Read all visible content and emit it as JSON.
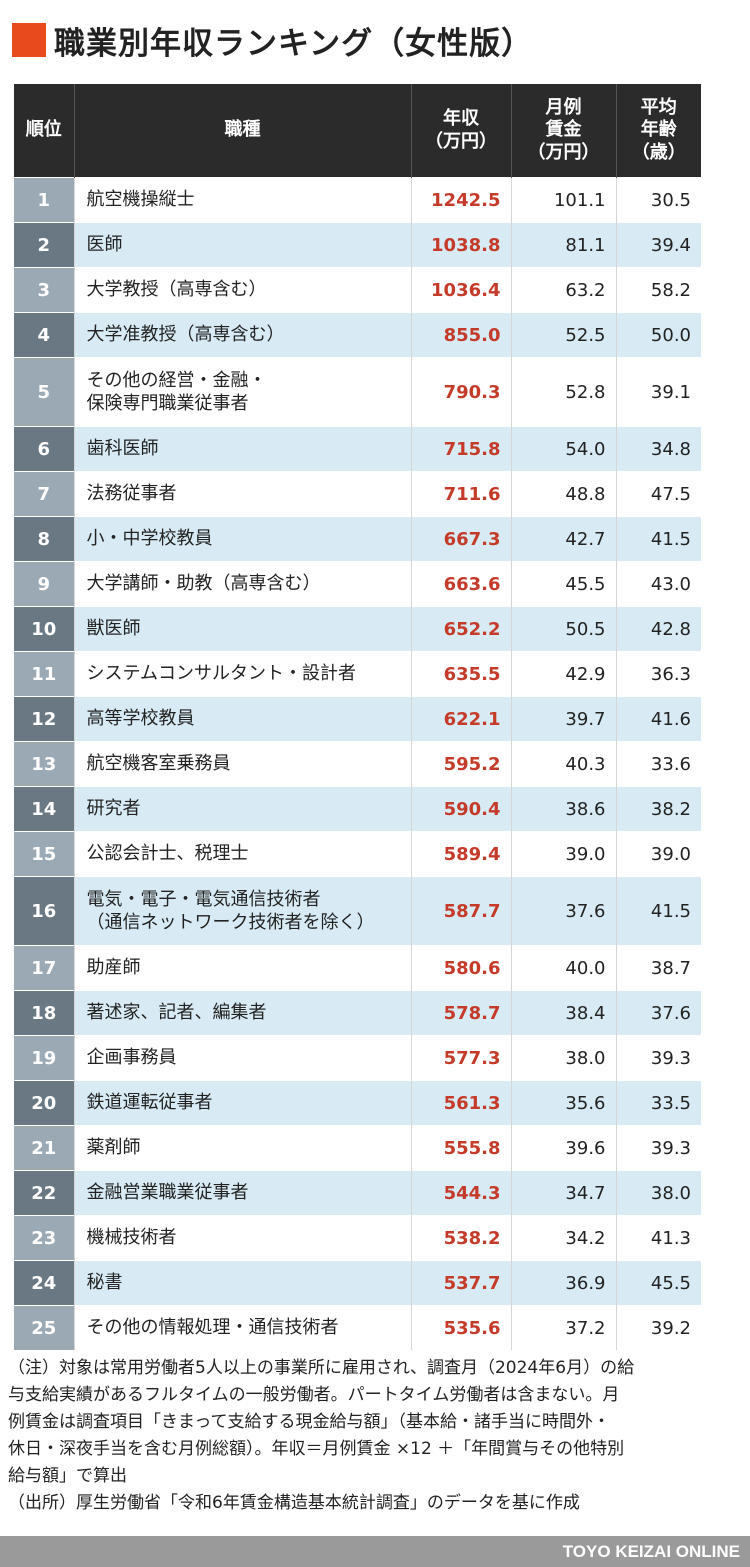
{
  "title": "職業別年収ランキング（女性版）",
  "header": {
    "rank": "順位",
    "job": "職種",
    "salary": [
      "年収",
      "（万円）"
    ],
    "monthly": [
      "月例",
      "賃金",
      "（万円）"
    ],
    "age": [
      "平均",
      "年齢",
      "（歳）"
    ]
  },
  "rows": [
    {
      "rank": "1",
      "job": [
        "航空機操縦士"
      ],
      "salary": "1242.5",
      "monthly": "101.1",
      "age": "30.5"
    },
    {
      "rank": "2",
      "job": [
        "医師"
      ],
      "salary": "1038.8",
      "monthly": "81.1",
      "age": "39.4"
    },
    {
      "rank": "3",
      "job": [
        "大学教授（高専含む）"
      ],
      "salary": "1036.4",
      "monthly": "63.2",
      "age": "58.2"
    },
    {
      "rank": "4",
      "job": [
        "大学准教授（高専含む）"
      ],
      "salary": "855.0",
      "monthly": "52.5",
      "age": "50.0"
    },
    {
      "rank": "5",
      "job": [
        "その他の経営・金融・",
        "保険専門職業従事者"
      ],
      "salary": "790.3",
      "monthly": "52.8",
      "age": "39.1"
    },
    {
      "rank": "6",
      "job": [
        "歯科医師"
      ],
      "salary": "715.8",
      "monthly": "54.0",
      "age": "34.8"
    },
    {
      "rank": "7",
      "job": [
        "法務従事者"
      ],
      "salary": "711.6",
      "monthly": "48.8",
      "age": "47.5"
    },
    {
      "rank": "8",
      "job": [
        "小・中学校教員"
      ],
      "salary": "667.3",
      "monthly": "42.7",
      "age": "41.5"
    },
    {
      "rank": "9",
      "job": [
        "大学講師・助教（高専含む）"
      ],
      "salary": "663.6",
      "monthly": "45.5",
      "age": "43.0"
    },
    {
      "rank": "10",
      "job": [
        "獣医師"
      ],
      "salary": "652.2",
      "monthly": "50.5",
      "age": "42.8"
    },
    {
      "rank": "11",
      "job": [
        "システムコンサルタント・設計者"
      ],
      "salary": "635.5",
      "monthly": "42.9",
      "age": "36.3"
    },
    {
      "rank": "12",
      "job": [
        "高等学校教員"
      ],
      "salary": "622.1",
      "monthly": "39.7",
      "age": "41.6"
    },
    {
      "rank": "13",
      "job": [
        "航空機客室乗務員"
      ],
      "salary": "595.2",
      "monthly": "40.3",
      "age": "33.6"
    },
    {
      "rank": "14",
      "job": [
        "研究者"
      ],
      "salary": "590.4",
      "monthly": "38.6",
      "age": "38.2"
    },
    {
      "rank": "15",
      "job": [
        "公認会計士、税理士"
      ],
      "salary": "589.4",
      "monthly": "39.0",
      "age": "39.0"
    },
    {
      "rank": "16",
      "job": [
        "電気・電子・電気通信技術者",
        "（通信ネットワーク技術者を除く）"
      ],
      "salary": "587.7",
      "monthly": "37.6",
      "age": "41.5"
    },
    {
      "rank": "17",
      "job": [
        "助産師"
      ],
      "salary": "580.6",
      "monthly": "40.0",
      "age": "38.7"
    },
    {
      "rank": "18",
      "job": [
        "著述家、記者、編集者"
      ],
      "salary": "578.7",
      "monthly": "38.4",
      "age": "37.6"
    },
    {
      "rank": "19",
      "job": [
        "企画事務員"
      ],
      "salary": "577.3",
      "monthly": "38.0",
      "age": "39.3"
    },
    {
      "rank": "20",
      "job": [
        "鉄道運転従事者"
      ],
      "salary": "561.3",
      "monthly": "35.6",
      "age": "33.5"
    },
    {
      "rank": "21",
      "job": [
        "薬剤師"
      ],
      "salary": "555.8",
      "monthly": "39.6",
      "age": "39.3"
    },
    {
      "rank": "22",
      "job": [
        "金融営業職業従事者"
      ],
      "salary": "544.3",
      "monthly": "34.7",
      "age": "38.0"
    },
    {
      "rank": "23",
      "job": [
        "機械技術者"
      ],
      "salary": "538.2",
      "monthly": "34.2",
      "age": "41.3"
    },
    {
      "rank": "24",
      "job": [
        "秘書"
      ],
      "salary": "537.7",
      "monthly": "36.9",
      "age": "45.5"
    },
    {
      "rank": "25",
      "job": [
        "その他の情報処理・通信技術者"
      ],
      "salary": "535.6",
      "monthly": "37.2",
      "age": "39.2"
    }
  ],
  "notes": [
    "（注）対象は常用労働者5人以上の事業所に雇用され、調査月（2024年6月）の給",
    "与支給実績があるフルタイムの一般労働者。パートタイム労働者は含まない。月",
    "例賃金は調査項目「きまって支給する現金給与額」（基本給・諸手当に時間外・",
    "休日・深夜手当を含む月例総額）。年収＝月例賃金 ×12 ＋「年間賞与その他特別",
    "給与額」で算出",
    "（出所）厚生労働省「令和6年賃金構造基本統計調査」のデータを基に作成"
  ],
  "footer": "TOYO KEIZAI ONLINE",
  "colors": {
    "accent": "#e8491d",
    "header_bg": "#2b2b2b",
    "row_alt": "#d8ebf4",
    "rank_dark": "#6a7884",
    "rank_light": "#9ba9b5",
    "salary_text": "#c53b2a",
    "footer_bg": "#9a9a9a"
  }
}
